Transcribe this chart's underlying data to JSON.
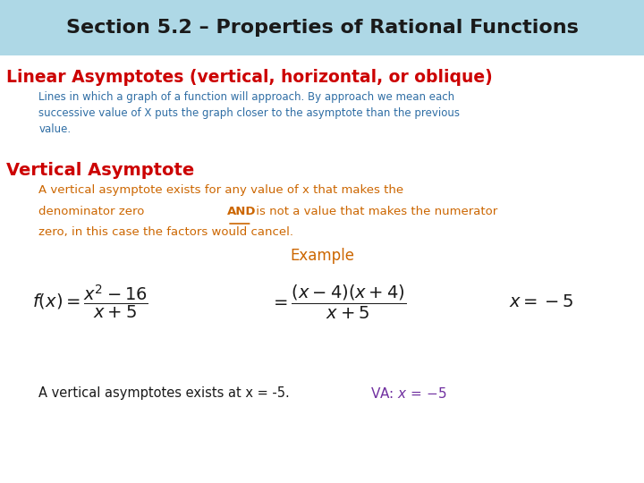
{
  "title": "Section 5.2 – Properties of Rational Functions",
  "title_bg": "#aed8e6",
  "title_color": "#1a1a1a",
  "subtitle": "Linear Asymptotes (vertical, horizontal, or oblique)",
  "subtitle_color": "#cc0000",
  "description": "Lines in which a graph of a function will approach. By approach we mean each\nsuccessive value of X puts the graph closer to the asymptote than the previous\nvalue.",
  "description_color": "#2e6da4",
  "section_heading": "Vertical Asymptote",
  "section_heading_color": "#cc0000",
  "body_text_color": "#cc6600",
  "body_line1": "A vertical asymptote exists for any value of x that makes the",
  "body_line2_pre": "denominator zero ",
  "body_line2_and": "AND",
  "body_line2_post": " is not a value that makes the numerator",
  "body_line3": "zero, in this case the factors would cancel.",
  "example_label": "Example",
  "example_color": "#cc6600",
  "bottom_text_black": "A vertical asymptotes exists at x = -5.",
  "bottom_purple_color": "#7030a0",
  "bg_color": "#ffffff"
}
